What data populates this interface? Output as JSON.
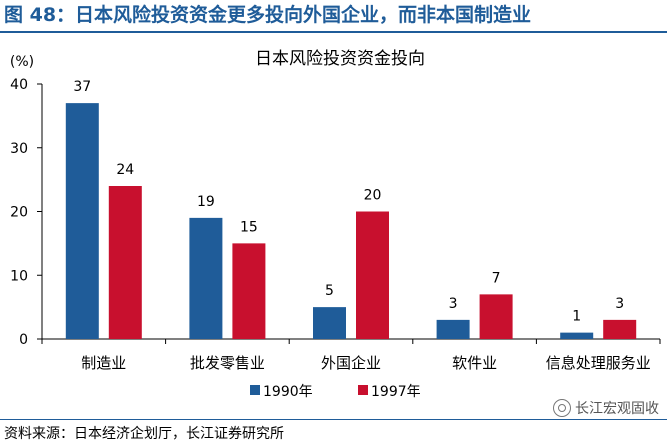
{
  "figure_title": "图 48：日本风险投资资金更多投向外国企业，而非本国制造业",
  "source_text": "资料来源：日本经济企划厅，长江证券研究所",
  "watermark": {
    "icon": "wechat-icon",
    "text": "长江宏观固收"
  },
  "chart_data": {
    "type": "bar",
    "title": "日本风险投资资金投向",
    "ylabel": "(%)",
    "categories": [
      "制造业",
      "批发零售业",
      "外国企业",
      "软件业",
      "信息处理服务业"
    ],
    "series": [
      {
        "name": "1990年",
        "values": [
          37,
          19,
          5,
          3,
          1
        ],
        "color": "#1f5c99"
      },
      {
        "name": "1997年",
        "values": [
          24,
          15,
          20,
          7,
          3
        ],
        "color": "#c8102e"
      }
    ],
    "ylim": [
      0,
      40
    ],
    "yticks": [
      0,
      10,
      20,
      30,
      40
    ],
    "grid": false,
    "legend_position": "bottom-center"
  }
}
